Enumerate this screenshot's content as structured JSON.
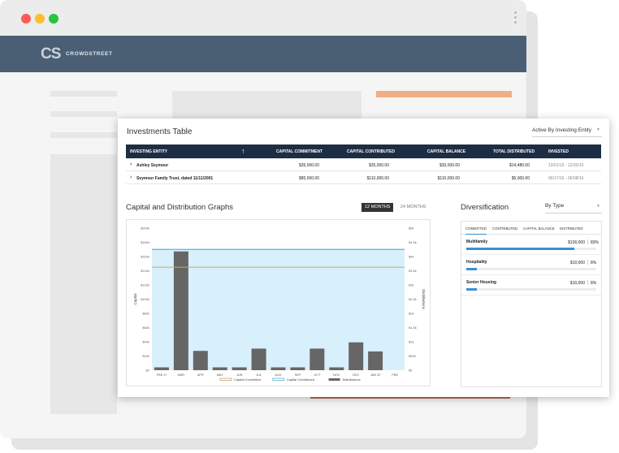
{
  "app": {
    "logo_mark": "CS",
    "logo_text": "CROWDSTREET"
  },
  "investments": {
    "title": "Investments Table",
    "filter": "Active By Investing Entity",
    "columns": [
      "INVESTING ENTITY",
      "CAPITAL COMMITMENT",
      "CAPITAL CONTRIBUTED",
      "CAPITAL BALANCE",
      "TOTAL DISTRIBUTED",
      "INVESTED"
    ],
    "sort_icon": "↑",
    "rows": [
      {
        "entity": "Ashley Seymour",
        "commitment": "$35,000.00",
        "contributed": "$35,000.00",
        "balance": "$30,000.00",
        "distributed": "$14,480.00",
        "invested": "10/01/15 - 12/30/15"
      },
      {
        "entity": "Seymour Family Trust, dated 11/11/2001",
        "commitment": "$85,000.00",
        "contributed": "$110,000.00",
        "balance": "$110,000.00",
        "distributed": "$5,000.00",
        "invested": "06/17/16 - 06/08/16"
      }
    ]
  },
  "graphs": {
    "title": "Capital and Distribution Graphs",
    "toggle_active": "12 MONTHS",
    "toggle_inactive": "24 MONTHS"
  },
  "chart_data": {
    "type": "bar",
    "categories": [
      "FEB 17",
      "MAR",
      "APR",
      "MAY",
      "JUN",
      "JUL",
      "AUG",
      "SEP",
      "OCT",
      "NOV",
      "DEC",
      "JAN 20",
      "FEB"
    ],
    "xlabel": "",
    "ylabel": "Capital",
    "y2label": "Distributions",
    "ylim": [
      0,
      200000
    ],
    "y2lim": [
      0,
      5000
    ],
    "yticks": [
      "$0",
      "$20k",
      "$40k",
      "$60k",
      "$80k",
      "$100k",
      "$120k",
      "$140k",
      "$160k",
      "$180k",
      "$200k"
    ],
    "y2ticks": [
      "$0",
      "$500",
      "$1k",
      "$1.5k",
      "$2k",
      "$2.5k",
      "$3k",
      "$3.5k",
      "$4k",
      "$4.5k",
      "$5k"
    ],
    "series": [
      {
        "name": "Distributions",
        "type": "bar",
        "axis": "y2",
        "color": "#666666",
        "values": [
          100,
          4180,
          680,
          100,
          100,
          760,
          100,
          100,
          760,
          100,
          980,
          660,
          0
        ]
      },
      {
        "name": "Capital Committed",
        "type": "line",
        "axis": "y",
        "color": "#c7a86b",
        "value": 145000
      },
      {
        "name": "Capital Contributed",
        "type": "line",
        "axis": "y",
        "color": "#5fb3d7",
        "value": 170000,
        "fill": "#d7f0fb"
      }
    ],
    "legend_position": "bottom"
  },
  "diversification": {
    "title": "Diversification",
    "filter": "By Type",
    "tabs": [
      "COMMITTED",
      "CONTRIBUTED",
      "CAPITAL BALANCE",
      "DISTRIBUTED"
    ],
    "items": [
      {
        "label": "Multifamily",
        "amount": "$100,000",
        "pct": "83%",
        "value": 0.83
      },
      {
        "label": "Hospitality",
        "amount": "$10,000",
        "pct": "8%",
        "value": 0.08
      },
      {
        "label": "Senior Housing",
        "amount": "$10,000",
        "pct": "8%",
        "value": 0.08
      }
    ]
  },
  "colors": {
    "header": "#1d2d44",
    "appbar": "#4a5f74",
    "accent": "#3d8fd0"
  }
}
